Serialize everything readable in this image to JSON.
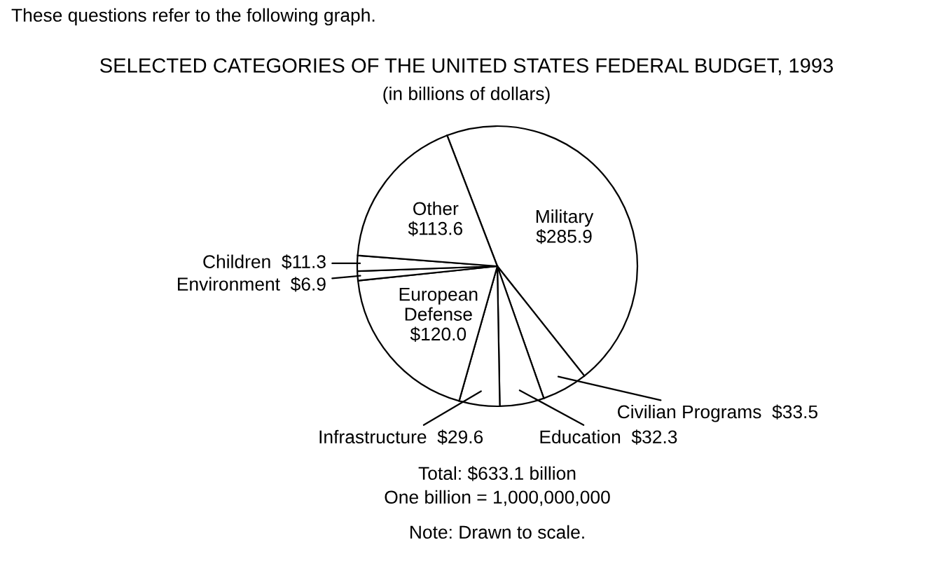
{
  "chart_data": {
    "type": "pie",
    "title": "SELECTED CATEGORIES OF THE UNITED STATES FEDERAL BUDGET, 1993",
    "subtitle": "(in billions of dollars)",
    "categories": [
      "Military",
      "Civilian Programs",
      "Education",
      "Infrastructure",
      "European Defense",
      "Environment",
      "Children",
      "Other"
    ],
    "values": [
      285.9,
      33.5,
      32.3,
      29.6,
      120.0,
      6.9,
      11.3,
      113.6
    ],
    "value_labels": [
      "$285.9",
      "$33.5",
      "$32.3",
      "$29.6",
      "$120.0",
      "$6.9",
      "$11.3",
      "$113.6"
    ],
    "colors": [
      "#ffffff",
      "#ffffff",
      "#ffffff",
      "#ffffff",
      "#ffffff",
      "#ffffff",
      "#ffffff",
      "#ffffff"
    ],
    "annotations": [
      "These questions refer to the following graph.",
      "Total: $633.1 billion",
      "One billion = 1,000,000,000",
      "Note: Drawn to scale."
    ]
  }
}
